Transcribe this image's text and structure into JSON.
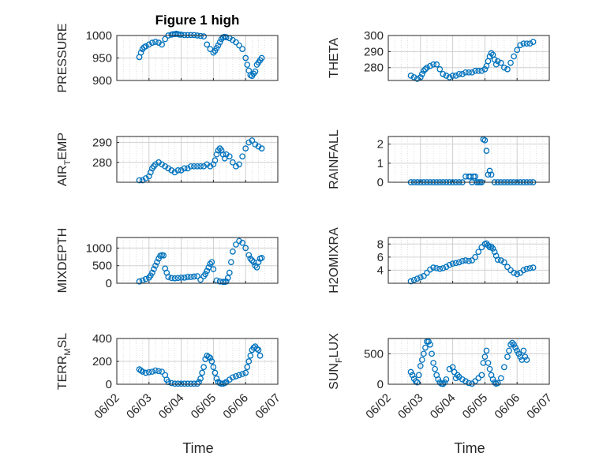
{
  "figure": {
    "title": "Figure 1 high",
    "xlabel": "Time"
  },
  "chart_data": [
    {
      "id": "pressure",
      "type": "scatter",
      "ylabel": "PRESSURE",
      "ylim": [
        900,
        1000
      ],
      "yticks": [
        "900",
        "950",
        "1000"
      ],
      "x": [
        0.7,
        0.75,
        0.8,
        0.85,
        0.9,
        1.0,
        1.1,
        1.2,
        1.3,
        1.4,
        1.5,
        1.6,
        1.7,
        1.75,
        1.8,
        1.85,
        1.9,
        1.95,
        2.0,
        2.1,
        2.2,
        2.3,
        2.4,
        2.5,
        2.6,
        2.7,
        2.8,
        2.9,
        3.0,
        3.05,
        3.1,
        3.15,
        3.2,
        3.25,
        3.3,
        3.35,
        3.4,
        3.5,
        3.6,
        3.7,
        3.8,
        3.9,
        4.0,
        4.05,
        4.1,
        4.15,
        4.2,
        4.25,
        4.3,
        4.35,
        4.4,
        4.45,
        4.5
      ],
      "y": [
        952,
        962,
        970,
        974,
        976,
        980,
        984,
        986,
        984,
        980,
        992,
        1000,
        1002,
        1003,
        1003,
        1004,
        1003,
        1002,
        1002,
        1001,
        1001,
        1001,
        1001,
        1000,
        999,
        998,
        980,
        970,
        962,
        966,
        972,
        978,
        985,
        992,
        996,
        997,
        996,
        994,
        990,
        985,
        978,
        970,
        950,
        935,
        922,
        912,
        910,
        915,
        920,
        935,
        940,
        945,
        950
      ]
    },
    {
      "id": "theta",
      "type": "scatter",
      "ylabel": "THETA",
      "ylim": [
        272,
        300
      ],
      "yticks": [
        "280",
        "290",
        "300"
      ],
      "x": [
        0.7,
        0.8,
        0.9,
        1.0,
        1.05,
        1.1,
        1.15,
        1.2,
        1.3,
        1.4,
        1.5,
        1.6,
        1.7,
        1.8,
        1.9,
        2.0,
        2.1,
        2.2,
        2.3,
        2.4,
        2.5,
        2.6,
        2.7,
        2.8,
        2.9,
        3.0,
        3.05,
        3.1,
        3.15,
        3.2,
        3.25,
        3.3,
        3.35,
        3.4,
        3.5,
        3.6,
        3.7,
        3.8,
        3.9,
        4.0,
        4.1,
        4.2,
        4.3,
        4.4,
        4.5
      ],
      "y": [
        275,
        274,
        273,
        274,
        276,
        278,
        279,
        280,
        281,
        282,
        282,
        279,
        276,
        275,
        274,
        275,
        275,
        276,
        276,
        277,
        277,
        277,
        278,
        278,
        278,
        279,
        281,
        284,
        287,
        289,
        288,
        285,
        282,
        284,
        283,
        280,
        279,
        283,
        287,
        291,
        294,
        295,
        295,
        295,
        296
      ]
    },
    {
      "id": "air_temp",
      "type": "scatter",
      "ylabel": "AIR",
      "ylabel_sub": "T",
      "ylabel_tail": "EMP",
      "ylim": [
        270,
        293
      ],
      "yticks": [
        "280",
        "290"
      ],
      "x": [
        0.7,
        0.8,
        0.9,
        1.0,
        1.05,
        1.1,
        1.15,
        1.2,
        1.3,
        1.4,
        1.5,
        1.6,
        1.7,
        1.8,
        1.9,
        2.0,
        2.1,
        2.2,
        2.3,
        2.4,
        2.5,
        2.6,
        2.7,
        2.8,
        2.9,
        3.0,
        3.05,
        3.1,
        3.15,
        3.2,
        3.25,
        3.3,
        3.35,
        3.4,
        3.5,
        3.6,
        3.7,
        3.8,
        3.9,
        4.0,
        4.1,
        4.2,
        4.3,
        4.4,
        4.5
      ],
      "y": [
        271,
        271,
        272,
        273,
        275,
        277,
        278,
        279,
        280,
        279,
        278,
        277,
        276,
        275,
        276,
        276,
        277,
        277,
        278,
        278,
        278,
        278,
        278,
        279,
        278,
        279,
        281,
        284,
        286,
        287,
        286,
        284,
        282,
        284,
        283,
        280,
        278,
        279,
        283,
        287,
        290,
        291,
        289,
        288,
        287
      ]
    },
    {
      "id": "rainfall",
      "type": "scatter",
      "ylabel": "RAINFALL",
      "ylim": [
        0,
        2.4
      ],
      "yticks": [
        "0",
        "1",
        "2"
      ],
      "x": [
        0.7,
        0.8,
        0.9,
        1.0,
        1.1,
        1.2,
        1.3,
        1.4,
        1.5,
        1.6,
        1.7,
        1.8,
        1.9,
        2.0,
        2.1,
        2.2,
        2.3,
        2.4,
        2.5,
        2.55,
        2.6,
        2.65,
        2.7,
        2.75,
        2.8,
        2.85,
        2.9,
        2.95,
        3.0,
        3.05,
        3.1,
        3.15,
        3.2,
        3.3,
        3.4,
        3.5,
        3.6,
        3.7,
        3.8,
        3.9,
        4.0,
        4.1,
        4.2,
        4.3,
        4.4,
        4.5
      ],
      "y": [
        0,
        0,
        0,
        0,
        0,
        0,
        0,
        0,
        0,
        0,
        0,
        0,
        0,
        0,
        0,
        0,
        0,
        0.3,
        0.3,
        0.3,
        0,
        0.3,
        0.3,
        0,
        0,
        0,
        0,
        2.25,
        2.2,
        1.65,
        0.4,
        0.6,
        0.4,
        0,
        0,
        0,
        0,
        0,
        0,
        0,
        0,
        0,
        0,
        0,
        0,
        0
      ]
    },
    {
      "id": "mixdepth",
      "type": "scatter",
      "ylabel": "MIXDEPTH",
      "ylim": [
        0,
        1300
      ],
      "yticks": [
        "0",
        "500",
        "1000"
      ],
      "x": [
        0.7,
        0.8,
        0.9,
        1.0,
        1.05,
        1.1,
        1.15,
        1.2,
        1.25,
        1.3,
        1.35,
        1.4,
        1.45,
        1.5,
        1.55,
        1.6,
        1.7,
        1.8,
        1.9,
        2.0,
        2.1,
        2.2,
        2.3,
        2.4,
        2.5,
        2.6,
        2.7,
        2.75,
        2.8,
        2.85,
        2.9,
        2.95,
        3.0,
        3.1,
        3.2,
        3.3,
        3.35,
        3.4,
        3.45,
        3.5,
        3.55,
        3.6,
        3.7,
        3.8,
        3.9,
        4.0,
        4.1,
        4.15,
        4.2,
        4.25,
        4.3,
        4.35,
        4.4,
        4.45,
        4.5
      ],
      "y": [
        50,
        80,
        120,
        160,
        220,
        300,
        400,
        500,
        600,
        700,
        780,
        800,
        790,
        420,
        300,
        180,
        150,
        140,
        150,
        160,
        160,
        180,
        180,
        190,
        200,
        100,
        200,
        260,
        350,
        450,
        550,
        600,
        400,
        80,
        50,
        40,
        40,
        50,
        150,
        300,
        600,
        900,
        1100,
        1200,
        1150,
        1000,
        800,
        700,
        650,
        600,
        500,
        450,
        600,
        700,
        720
      ]
    },
    {
      "id": "h2omixra",
      "type": "scatter",
      "ylabel": "H2OMIXRA",
      "ylim": [
        2,
        9
      ],
      "yticks": [
        "4",
        "6",
        "8"
      ],
      "x": [
        0.7,
        0.8,
        0.9,
        1.0,
        1.1,
        1.2,
        1.3,
        1.4,
        1.5,
        1.6,
        1.7,
        1.8,
        1.9,
        2.0,
        2.1,
        2.2,
        2.3,
        2.4,
        2.5,
        2.6,
        2.7,
        2.8,
        2.9,
        3.0,
        3.05,
        3.1,
        3.15,
        3.2,
        3.25,
        3.3,
        3.35,
        3.4,
        3.5,
        3.6,
        3.7,
        3.8,
        3.9,
        4.0,
        4.1,
        4.2,
        4.3,
        4.4,
        4.5
      ],
      "y": [
        2.3,
        2.5,
        2.7,
        2.9,
        3.1,
        3.6,
        4.1,
        4.4,
        4.3,
        4.2,
        4.3,
        4.5,
        4.8,
        5.0,
        5.1,
        5.2,
        5.4,
        5.5,
        5.4,
        5.5,
        6.0,
        6.8,
        7.5,
        8.0,
        8.1,
        7.8,
        7.5,
        7.6,
        7.3,
        6.8,
        6.2,
        5.6,
        5.5,
        5.2,
        4.5,
        4.0,
        3.6,
        3.4,
        3.6,
        4.0,
        4.2,
        4.3,
        4.4
      ]
    },
    {
      "id": "terr_msl",
      "type": "scatter",
      "ylabel": "TERR",
      "ylabel_sub": "M",
      "ylabel_tail": "SL",
      "ylim": [
        0,
        400
      ],
      "yticks": [
        "0",
        "200",
        "400"
      ],
      "x": [
        0.7,
        0.75,
        0.8,
        0.9,
        1.0,
        1.1,
        1.2,
        1.3,
        1.4,
        1.5,
        1.55,
        1.6,
        1.7,
        1.8,
        1.9,
        2.0,
        2.1,
        2.2,
        2.3,
        2.4,
        2.5,
        2.55,
        2.6,
        2.65,
        2.7,
        2.75,
        2.8,
        2.85,
        2.9,
        2.95,
        3.0,
        3.05,
        3.1,
        3.15,
        3.2,
        3.25,
        3.3,
        3.35,
        3.4,
        3.5,
        3.6,
        3.7,
        3.8,
        3.9,
        4.0,
        4.05,
        4.1,
        4.15,
        4.2,
        4.25,
        4.3,
        4.35,
        4.4,
        4.45
      ],
      "y": [
        130,
        120,
        110,
        100,
        105,
        110,
        120,
        115,
        110,
        80,
        40,
        20,
        10,
        5,
        5,
        5,
        5,
        5,
        5,
        5,
        5,
        20,
        50,
        100,
        150,
        220,
        250,
        240,
        230,
        200,
        150,
        100,
        50,
        20,
        10,
        5,
        5,
        10,
        20,
        40,
        60,
        70,
        80,
        90,
        100,
        150,
        200,
        250,
        300,
        320,
        330,
        310,
        300,
        250
      ]
    },
    {
      "id": "sun_flux",
      "type": "scatter",
      "ylabel": "SUN",
      "ylabel_sub": "F",
      "ylabel_tail": "LUX",
      "ylim": [
        0,
        750
      ],
      "yticks": [
        "0",
        "500"
      ],
      "x": [
        0.7,
        0.75,
        0.8,
        0.85,
        0.9,
        0.95,
        1.0,
        1.05,
        1.1,
        1.15,
        1.2,
        1.25,
        1.3,
        1.35,
        1.4,
        1.45,
        1.5,
        1.55,
        1.6,
        1.65,
        1.7,
        1.75,
        1.8,
        1.9,
        2.0,
        2.05,
        2.1,
        2.15,
        2.2,
        2.3,
        2.4,
        2.5,
        2.6,
        2.7,
        2.8,
        2.9,
        2.95,
        3.0,
        3.05,
        3.1,
        3.15,
        3.2,
        3.25,
        3.3,
        3.35,
        3.4,
        3.5,
        3.6,
        3.7,
        3.75,
        3.8,
        3.85,
        3.9,
        3.95,
        4.0,
        4.05,
        4.1,
        4.15,
        4.2,
        4.25,
        4.3
      ],
      "y": [
        200,
        150,
        90,
        50,
        30,
        150,
        300,
        400,
        500,
        600,
        700,
        700,
        650,
        500,
        350,
        250,
        150,
        80,
        30,
        10,
        5,
        30,
        80,
        250,
        280,
        200,
        100,
        150,
        120,
        80,
        50,
        20,
        10,
        50,
        100,
        150,
        350,
        450,
        550,
        350,
        250,
        150,
        80,
        30,
        10,
        20,
        100,
        280,
        450,
        550,
        650,
        680,
        650,
        600,
        550,
        500,
        450,
        400,
        550,
        450,
        400
      ]
    }
  ],
  "axes": {
    "xlim": [
      0,
      5
    ],
    "xticks": [
      "06/02",
      "06/03",
      "06/04",
      "06/05",
      "06/06",
      "06/07"
    ]
  },
  "style": {
    "marker_color": "#0072BD",
    "grid_color": "#d0d0d0"
  }
}
